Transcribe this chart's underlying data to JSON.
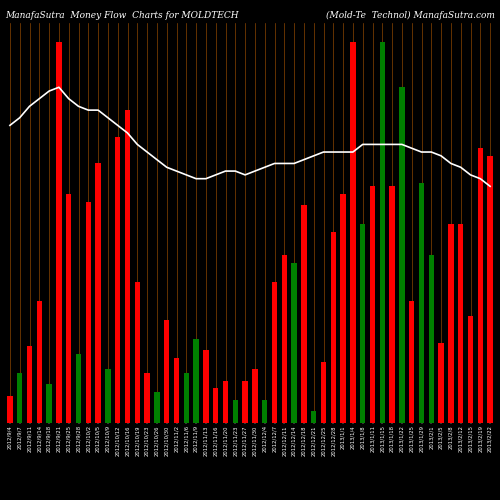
{
  "title_left": "ManafaSutra  Money Flow  Charts for MOLDTECH",
  "title_right": "(Mold-Te  Technol) ManafaSutra.com",
  "background_color": "#000000",
  "grid_color": "#8B4500",
  "line_color": "#ffffff",
  "bar_colors": [
    "red",
    "green",
    "red",
    "red",
    "green",
    "red",
    "red",
    "green",
    "red",
    "red",
    "green",
    "red",
    "red",
    "red",
    "red",
    "green",
    "red",
    "red",
    "green",
    "green",
    "red",
    "red",
    "red",
    "green",
    "red",
    "red",
    "green",
    "red",
    "red",
    "green",
    "red",
    "green",
    "red",
    "red",
    "red",
    "red",
    "green",
    "red",
    "green",
    "red",
    "green",
    "red",
    "green",
    "green",
    "red",
    "red",
    "red",
    "red",
    "red",
    "red"
  ],
  "bar_heights": [
    0.07,
    0.13,
    0.2,
    0.32,
    0.1,
    1.0,
    0.6,
    0.18,
    0.58,
    0.68,
    0.14,
    0.75,
    0.82,
    0.37,
    0.13,
    0.08,
    0.27,
    0.17,
    0.13,
    0.22,
    0.19,
    0.09,
    0.11,
    0.06,
    0.11,
    0.14,
    0.06,
    0.37,
    0.44,
    0.42,
    0.57,
    0.03,
    0.16,
    0.5,
    0.6,
    1.0,
    0.52,
    0.62,
    1.0,
    0.62,
    0.88,
    0.32,
    0.63,
    0.44,
    0.21,
    0.52,
    0.52,
    0.28,
    0.72,
    0.7
  ],
  "line_values": [
    0.78,
    0.8,
    0.83,
    0.85,
    0.87,
    0.88,
    0.85,
    0.83,
    0.82,
    0.82,
    0.8,
    0.78,
    0.76,
    0.73,
    0.71,
    0.69,
    0.67,
    0.66,
    0.65,
    0.64,
    0.64,
    0.65,
    0.66,
    0.66,
    0.65,
    0.66,
    0.67,
    0.68,
    0.68,
    0.68,
    0.69,
    0.7,
    0.71,
    0.71,
    0.71,
    0.71,
    0.73,
    0.73,
    0.73,
    0.73,
    0.73,
    0.72,
    0.71,
    0.71,
    0.7,
    0.68,
    0.67,
    0.65,
    0.64,
    0.62
  ],
  "n_bars": 50,
  "ylim": [
    0,
    1.05
  ],
  "title_fontsize": 6.5,
  "tick_label_fontsize": 3.8,
  "x_labels": [
    "2012/9/4",
    "2012/9/7",
    "2012/9/11",
    "2012/9/14",
    "2012/9/18",
    "2012/9/21",
    "2012/9/25",
    "2012/9/28",
    "2012/10/2",
    "2012/10/5",
    "2012/10/9",
    "2012/10/12",
    "2012/10/16",
    "2012/10/19",
    "2012/10/23",
    "2012/10/26",
    "2012/10/30",
    "2012/11/2",
    "2012/11/6",
    "2012/11/9",
    "2012/11/13",
    "2012/11/16",
    "2012/11/20",
    "2012/11/23",
    "2012/11/27",
    "2012/11/30",
    "2012/12/4",
    "2012/12/7",
    "2012/12/11",
    "2012/12/14",
    "2012/12/18",
    "2012/12/21",
    "2012/12/25",
    "2012/12/28",
    "2013/1/1",
    "2013/1/4",
    "2013/1/8",
    "2013/1/11",
    "2013/1/15",
    "2013/1/18",
    "2013/1/22",
    "2013/1/25",
    "2013/1/29",
    "2013/2/1",
    "2013/2/5",
    "2013/2/8",
    "2013/2/12",
    "2013/2/15",
    "2013/2/19",
    "2013/2/22"
  ]
}
